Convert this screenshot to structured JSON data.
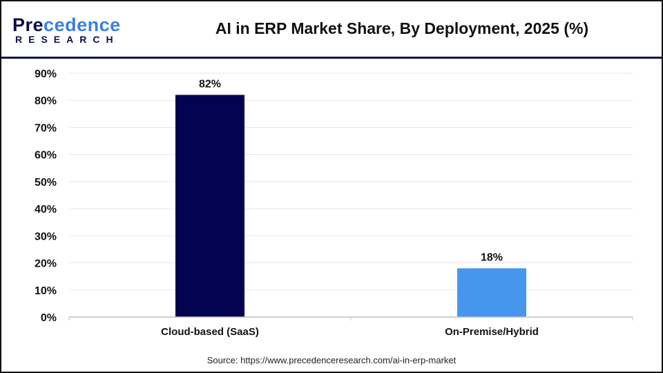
{
  "logo": {
    "line1_dark": "Pre",
    "line1_accent": "cedence",
    "line2": "RESEARCH"
  },
  "colors": {
    "cloud": "#020452",
    "onprem": "#4696ee",
    "grid": "#e6e6e6",
    "axis": "#bfbfbf",
    "header_rule": "#0a0f4a"
  },
  "source": "Source: https://www.precedenceresearch.com/ai-in-erp-market",
  "chart_data": {
    "type": "bar",
    "title": "AI in ERP Market Share, By Deployment, 2025 (%)",
    "categories": [
      "Cloud-based (SaaS)",
      "On-Premise/Hybrid"
    ],
    "values": [
      82,
      18
    ],
    "data_labels": [
      "82%",
      "18%"
    ],
    "ylim": [
      0,
      90
    ],
    "yticks": [
      "0%",
      "10%",
      "20%",
      "30%",
      "40%",
      "50%",
      "60%",
      "70%",
      "80%",
      "90%"
    ],
    "grid": true,
    "xlabel": "",
    "ylabel": ""
  }
}
